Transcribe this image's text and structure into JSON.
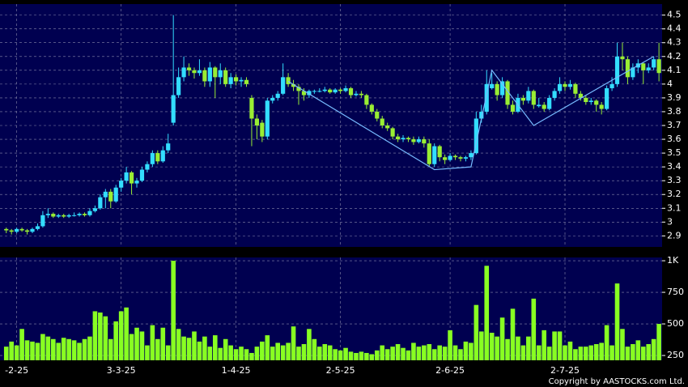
{
  "chart_data": [
    {
      "type": "candlestick",
      "up_color": "#33ddff",
      "down_color": "#99ee33",
      "grid": true,
      "xlim": [
        -1.2,
        125.6
      ],
      "ylim": [
        2.82,
        4.58
      ],
      "yticks": [
        2.9,
        3,
        3.1,
        3.2,
        3.3,
        3.4,
        3.5,
        3.6,
        3.7,
        3.8,
        3.9,
        4,
        4.1,
        4.2,
        4.3,
        4.4,
        4.5
      ],
      "xticks": [
        {
          "value": 2,
          "label": "-2-25"
        },
        {
          "value": 22,
          "label": "3-3-25"
        },
        {
          "value": 44,
          "label": "1-4-25"
        },
        {
          "value": 64,
          "label": "2-5-25"
        },
        {
          "value": 85,
          "label": "2-6-25"
        },
        {
          "value": 107,
          "label": "2-7-25"
        }
      ],
      "ohlc": [
        [
          2.95,
          2.96,
          2.92,
          2.94
        ],
        [
          2.94,
          2.95,
          2.91,
          2.93
        ],
        [
          2.93,
          2.96,
          2.92,
          2.95
        ],
        [
          2.95,
          2.96,
          2.93,
          2.94
        ],
        [
          2.94,
          2.95,
          2.91,
          2.93
        ],
        [
          2.93,
          2.96,
          2.92,
          2.95
        ],
        [
          2.95,
          2.99,
          2.94,
          2.97
        ],
        [
          2.97,
          3.08,
          2.96,
          3.05
        ],
        [
          3.05,
          3.1,
          3.03,
          3.06
        ],
        [
          3.06,
          3.07,
          3.03,
          3.04
        ],
        [
          3.04,
          3.06,
          3.03,
          3.05
        ],
        [
          3.05,
          3.06,
          3.03,
          3.04
        ],
        [
          3.04,
          3.06,
          3.03,
          3.05
        ],
        [
          3.05,
          3.07,
          3.04,
          3.05
        ],
        [
          3.05,
          3.07,
          3.04,
          3.06
        ],
        [
          3.06,
          3.07,
          3.04,
          3.05
        ],
        [
          3.05,
          3.1,
          3.04,
          3.08
        ],
        [
          3.08,
          3.12,
          3.07,
          3.1
        ],
        [
          3.1,
          3.2,
          3.09,
          3.18
        ],
        [
          3.18,
          3.24,
          3.1,
          3.22
        ],
        [
          3.22,
          3.24,
          3.1,
          3.15
        ],
        [
          3.15,
          3.27,
          3.14,
          3.25
        ],
        [
          3.25,
          3.32,
          3.22,
          3.3
        ],
        [
          3.3,
          3.4,
          3.28,
          3.36
        ],
        [
          3.36,
          3.37,
          3.2,
          3.28
        ],
        [
          3.28,
          3.32,
          3.25,
          3.3
        ],
        [
          3.3,
          3.4,
          3.29,
          3.38
        ],
        [
          3.38,
          3.44,
          3.36,
          3.42
        ],
        [
          3.42,
          3.52,
          3.4,
          3.5
        ],
        [
          3.5,
          3.52,
          3.42,
          3.44
        ],
        [
          3.44,
          3.55,
          3.43,
          3.52
        ],
        [
          3.52,
          3.64,
          3.5,
          3.57
        ],
        [
          3.72,
          4.5,
          3.7,
          3.92
        ],
        [
          3.92,
          4.12,
          3.9,
          4.05
        ],
        [
          4.05,
          4.2,
          4.02,
          4.12
        ],
        [
          4.12,
          4.15,
          4.06,
          4.1
        ],
        [
          4.1,
          4.12,
          4.04,
          4.08
        ],
        [
          4.08,
          4.18,
          4.06,
          4.1
        ],
        [
          4.1,
          4.12,
          3.98,
          4.02
        ],
        [
          4.02,
          4.16,
          3.98,
          4.12
        ],
        [
          4.12,
          4.13,
          3.9,
          4.05
        ],
        [
          4.05,
          4.15,
          4.0,
          4.1
        ],
        [
          4.1,
          4.12,
          3.98,
          4.0
        ],
        [
          4.0,
          4.08,
          3.97,
          4.05
        ],
        [
          4.05,
          4.07,
          3.99,
          4.02
        ],
        [
          4.02,
          4.05,
          3.98,
          4.03
        ],
        [
          4.03,
          4.05,
          3.98,
          4.0
        ],
        [
          3.9,
          3.92,
          3.55,
          3.75
        ],
        [
          3.75,
          3.78,
          3.6,
          3.7
        ],
        [
          3.72,
          3.74,
          3.58,
          3.62
        ],
        [
          3.62,
          3.9,
          3.6,
          3.88
        ],
        [
          3.88,
          3.92,
          3.86,
          3.9
        ],
        [
          3.9,
          3.95,
          3.88,
          3.93
        ],
        [
          3.93,
          4.15,
          3.92,
          4.05
        ],
        [
          4.05,
          4.08,
          3.98,
          4.0
        ],
        [
          4.0,
          4.03,
          3.95,
          3.98
        ],
        [
          3.98,
          4.0,
          3.85,
          3.95
        ],
        [
          3.95,
          3.97,
          3.88,
          3.92
        ],
        [
          3.92,
          3.96,
          3.9,
          3.95
        ],
        [
          3.95,
          3.96,
          3.93,
          3.95
        ],
        [
          3.95,
          3.97,
          3.94,
          3.95
        ],
        [
          3.95,
          3.98,
          3.94,
          3.96
        ],
        [
          3.96,
          3.97,
          3.93,
          3.94
        ],
        [
          3.94,
          3.97,
          3.93,
          3.96
        ],
        [
          3.96,
          3.97,
          3.93,
          3.95
        ],
        [
          3.95,
          3.99,
          3.94,
          3.97
        ],
        [
          3.97,
          3.98,
          3.9,
          3.92
        ],
        [
          3.92,
          3.95,
          3.91,
          3.93
        ],
        [
          3.93,
          3.95,
          3.9,
          3.92
        ],
        [
          3.92,
          3.93,
          3.82,
          3.85
        ],
        [
          3.85,
          3.86,
          3.78,
          3.8
        ],
        [
          3.8,
          3.82,
          3.73,
          3.75
        ],
        [
          3.75,
          3.77,
          3.68,
          3.7
        ],
        [
          3.7,
          3.72,
          3.66,
          3.68
        ],
        [
          3.68,
          3.69,
          3.6,
          3.62
        ],
        [
          3.62,
          3.64,
          3.58,
          3.6
        ],
        [
          3.6,
          3.63,
          3.58,
          3.61
        ],
        [
          3.61,
          3.62,
          3.58,
          3.6
        ],
        [
          3.6,
          3.62,
          3.56,
          3.58
        ],
        [
          3.58,
          3.62,
          3.57,
          3.6
        ],
        [
          3.6,
          3.62,
          3.54,
          3.57
        ],
        [
          3.57,
          3.6,
          3.4,
          3.42
        ],
        [
          3.42,
          3.57,
          3.4,
          3.55
        ],
        [
          3.55,
          3.56,
          3.44,
          3.47
        ],
        [
          3.47,
          3.49,
          3.42,
          3.45
        ],
        [
          3.45,
          3.5,
          3.44,
          3.48
        ],
        [
          3.48,
          3.49,
          3.45,
          3.47
        ],
        [
          3.47,
          3.48,
          3.44,
          3.46
        ],
        [
          3.46,
          3.48,
          3.44,
          3.47
        ],
        [
          3.47,
          3.52,
          3.45,
          3.5
        ],
        [
          3.5,
          3.8,
          3.49,
          3.75
        ],
        [
          3.75,
          3.85,
          3.72,
          3.8
        ],
        [
          3.8,
          4.1,
          3.78,
          4.0
        ],
        [
          3.97,
          4.08,
          3.96,
          4.0
        ],
        [
          4.0,
          4.02,
          3.88,
          3.92
        ],
        [
          3.92,
          4.05,
          3.9,
          4.02
        ],
        [
          4.02,
          4.03,
          3.82,
          3.85
        ],
        [
          3.85,
          3.88,
          3.78,
          3.8
        ],
        [
          3.8,
          3.93,
          3.79,
          3.9
        ],
        [
          3.9,
          3.92,
          3.85,
          3.88
        ],
        [
          3.88,
          3.98,
          3.86,
          3.95
        ],
        [
          3.95,
          3.96,
          3.82,
          3.85
        ],
        [
          3.84,
          3.9,
          3.83,
          3.85
        ],
        [
          3.85,
          3.87,
          3.8,
          3.82
        ],
        [
          3.82,
          3.92,
          3.81,
          3.9
        ],
        [
          3.9,
          3.97,
          3.88,
          3.95
        ],
        [
          3.95,
          4.05,
          3.93,
          4.0
        ],
        [
          4.0,
          4.02,
          3.95,
          3.98
        ],
        [
          3.98,
          4.03,
          3.96,
          4.0
        ],
        [
          4.0,
          4.01,
          3.9,
          3.93
        ],
        [
          3.93,
          3.95,
          3.88,
          3.9
        ],
        [
          3.9,
          3.92,
          3.85,
          3.87
        ],
        [
          3.87,
          3.9,
          3.85,
          3.88
        ],
        [
          3.88,
          3.89,
          3.8,
          3.85
        ],
        [
          3.85,
          3.87,
          3.78,
          3.82
        ],
        [
          3.82,
          3.99,
          3.81,
          3.97
        ],
        [
          3.97,
          4.05,
          3.95,
          4.0
        ],
        [
          4.0,
          4.3,
          3.98,
          4.2
        ],
        [
          4.2,
          4.3,
          4.1,
          4.18
        ],
        [
          4.18,
          4.2,
          4.0,
          4.05
        ],
        [
          4.05,
          4.15,
          4.03,
          4.12
        ],
        [
          4.12,
          4.18,
          4.08,
          4.15
        ],
        [
          4.15,
          4.16,
          4.0,
          4.1
        ],
        [
          4.1,
          4.15,
          4.08,
          4.12
        ],
        [
          4.12,
          4.2,
          4.1,
          4.18
        ],
        [
          4.18,
          4.3,
          4.02,
          4.08
        ]
      ],
      "line": {
        "color": "#77bbff",
        "x": [
          54,
          82,
          89,
          93,
          101,
          117,
          124
        ],
        "values": [
          4.02,
          3.38,
          3.4,
          4.1,
          3.7,
          4.05,
          4.2
        ]
      }
    },
    {
      "type": "bar",
      "color": "#88ff22",
      "grid": true,
      "ylim": [
        212,
        1026
      ],
      "yticks": [
        250,
        500,
        750,
        {
          "value": 1000,
          "label": "1K"
        }
      ],
      "values": [
        320,
        360,
        330,
        460,
        370,
        360,
        350,
        420,
        400,
        380,
        350,
        390,
        380,
        370,
        350,
        380,
        400,
        600,
        590,
        560,
        380,
        520,
        600,
        630,
        420,
        470,
        440,
        330,
        490,
        380,
        470,
        330,
        1000,
        460,
        400,
        390,
        440,
        360,
        400,
        320,
        410,
        310,
        380,
        330,
        300,
        320,
        300,
        270,
        320,
        360,
        410,
        320,
        350,
        330,
        350,
        480,
        320,
        340,
        460,
        380,
        320,
        340,
        330,
        300,
        290,
        310,
        280,
        270,
        280,
        270,
        260,
        290,
        330,
        300,
        320,
        340,
        310,
        290,
        350,
        320,
        330,
        340,
        300,
        330,
        320,
        450,
        330,
        300,
        360,
        350,
        650,
        440,
        960,
        430,
        400,
        550,
        380,
        620,
        400,
        330,
        400,
        700,
        330,
        450,
        320,
        440,
        440,
        330,
        360,
        300,
        320,
        320,
        330,
        340,
        350,
        490,
        330,
        820,
        460,
        320,
        340,
        370,
        320,
        340,
        380,
        500
      ],
      "copyright": "Copyright by AASTOCKS.com Ltd."
    }
  ]
}
